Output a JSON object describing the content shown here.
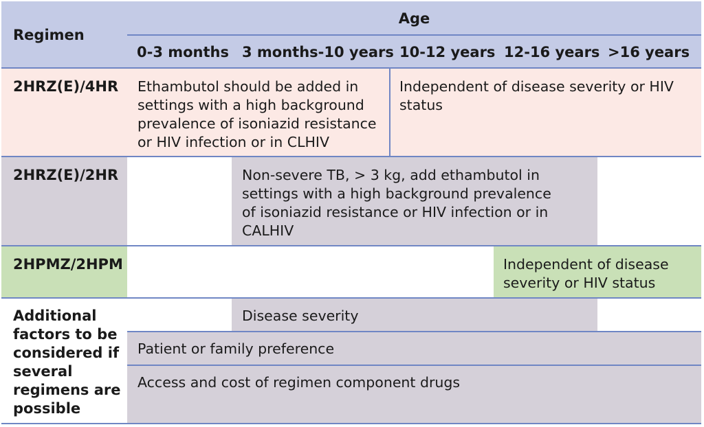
{
  "colors": {
    "header": "#c4cbe6",
    "row_pink": "#fce9e5",
    "row_gray": "#d5d0d9",
    "row_green": "#c9e0b7",
    "border": "#6f86c4"
  },
  "table": {
    "regimen_header": "Regimen",
    "age_header": "Age",
    "age_columns": [
      "0-3 months",
      "3 months-10 years",
      "10-12 years",
      "12-16 years",
      ">16 years"
    ],
    "rows": {
      "r1": {
        "regimen": "2HRZ(E)/4HR",
        "cell_a": "Ethambutol should be added in settings with a high background prevalence of isoniazid resistance or HIV infection or in CLHIV",
        "cell_b": "Independent of disease severity or HIV status"
      },
      "r2": {
        "regimen": "2HRZ(E)/2HR",
        "cell": "Non-severe TB, > 3 kg, add ethambutol in settings with a high background prevalence of isoniazid resistance or HIV infection or in CALHIV"
      },
      "r3": {
        "regimen": "2HPMZ/2HPM",
        "cell": "Independent of disease severity or HIV status"
      },
      "r4": {
        "regimen": "Additional factors to be considered if several regimens are possible",
        "factor_1": "Disease severity",
        "factor_2": "Patient or family preference",
        "factor_3": "Access and cost of regimen component drugs"
      }
    }
  }
}
